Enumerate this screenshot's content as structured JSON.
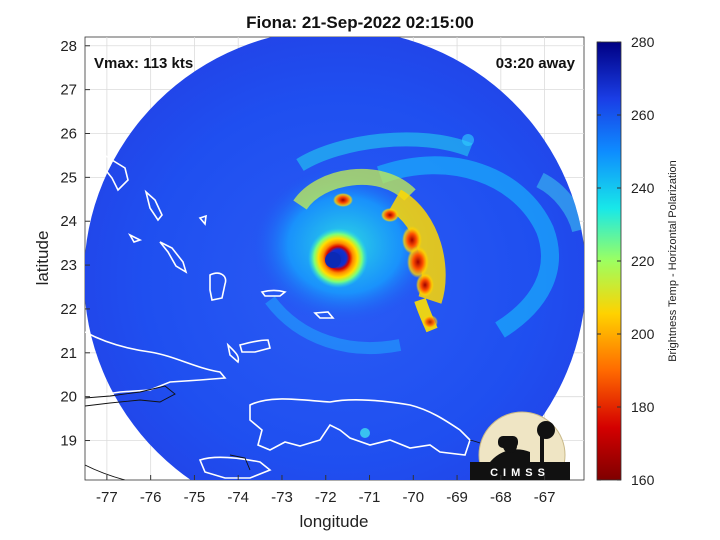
{
  "title": "Fiona: 21-Sep-2022 02:15:00",
  "vmax_label": "Vmax: 113 kts",
  "time_away_label": "03:20 away",
  "x_axis": {
    "label": "longitude",
    "range": [
      -77.5,
      -66.1
    ],
    "ticks": [
      -77,
      -76,
      -75,
      -74,
      -73,
      -72,
      -71,
      -70,
      -69,
      -68,
      -67
    ]
  },
  "y_axis": {
    "label": "latitude",
    "range": [
      18.1,
      28.2
    ],
    "ticks": [
      19,
      20,
      21,
      22,
      23,
      24,
      25,
      26,
      27,
      28
    ]
  },
  "colorbar": {
    "label": "Brightness Temp - Horizontal Polarization",
    "range": [
      160,
      280
    ],
    "ticks": [
      160,
      180,
      200,
      220,
      240,
      260,
      280
    ]
  },
  "logo_text": "CIMSS",
  "storm_center": {
    "lon": -71.8,
    "lat": 23.1
  },
  "swath_center": {
    "lon": -71.7,
    "lat": 22.8
  },
  "colors": {
    "background_field": "#1f4ff0",
    "coastline": "#ffffff",
    "grid": "#dcdcdc"
  }
}
